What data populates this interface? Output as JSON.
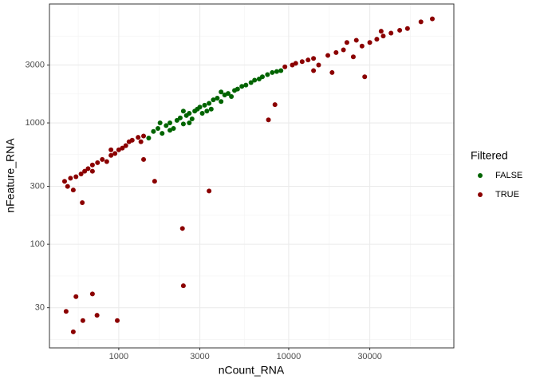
{
  "chart_data": {
    "type": "scatter",
    "xlabel": "nCount_RNA",
    "ylabel": "nFeature_RNA",
    "legend_title": "Filtered",
    "log_x": true,
    "log_y": true,
    "grid": true,
    "xlim": [
      391,
      93700
    ],
    "ylim": [
      14,
      9550
    ],
    "xticks": [
      1000,
      3000,
      10000,
      30000
    ],
    "yticks": [
      30,
      100,
      300,
      1000,
      3000
    ],
    "series": [
      {
        "name": "FALSE",
        "color": "#006400",
        "x": [
          1500,
          1600,
          1700,
          1800,
          1900,
          2000,
          2100,
          2200,
          2300,
          2400,
          2500,
          2600,
          2700,
          2800,
          2900,
          3000,
          3100,
          3200,
          3400,
          3500,
          3600,
          3800,
          4000,
          4200,
          4400,
          4600,
          4800,
          5000,
          5300,
          5600,
          6000,
          6300,
          6700,
          7000,
          7500,
          8000,
          8500,
          9000,
          2000,
          2600,
          3300,
          1750,
          2400,
          4000
        ],
        "y": [
          750,
          850,
          900,
          820,
          950,
          1000,
          900,
          1050,
          1100,
          980,
          1150,
          1200,
          1080,
          1250,
          1300,
          1350,
          1200,
          1400,
          1450,
          1300,
          1550,
          1600,
          1500,
          1700,
          1750,
          1650,
          1850,
          1900,
          2000,
          2050,
          2150,
          2250,
          2300,
          2400,
          2500,
          2600,
          2650,
          2700,
          870,
          1000,
          1250,
          1000,
          1250,
          1800
        ]
      },
      {
        "name": "TRUE",
        "color": "#8b0000",
        "x": [
          480,
          500,
          520,
          540,
          560,
          600,
          630,
          660,
          700,
          750,
          800,
          850,
          900,
          950,
          1000,
          1050,
          1100,
          1150,
          1200,
          1300,
          1400,
          1350,
          900,
          700,
          610,
          1626,
          1400,
          9500,
          10500,
          11000,
          12000,
          13000,
          14000,
          15000,
          17000,
          19000,
          21000,
          24000,
          27000,
          30000,
          33000,
          36000,
          40000,
          45000,
          50000,
          60000,
          70000,
          25000,
          18000,
          28000,
          35000,
          14000,
          22000,
          8300,
          7600,
          3400,
          2370,
          2400,
          490,
          540,
          560,
          615,
          700,
          745,
          980
        ],
        "y": [
          330,
          300,
          350,
          280,
          360,
          380,
          400,
          420,
          450,
          470,
          500,
          480,
          540,
          560,
          600,
          620,
          650,
          700,
          720,
          760,
          780,
          700,
          600,
          400,
          220,
          331,
          500,
          2900,
          3000,
          3100,
          3200,
          3300,
          3400,
          3000,
          3600,
          3800,
          4000,
          3500,
          4300,
          4600,
          4900,
          5200,
          5500,
          5800,
          6000,
          6800,
          7200,
          4800,
          2600,
          2400,
          5700,
          2700,
          4600,
          1416,
          1060,
          275,
          135,
          45.5,
          28,
          19,
          37,
          23.5,
          39,
          26,
          23.5
        ]
      }
    ]
  }
}
